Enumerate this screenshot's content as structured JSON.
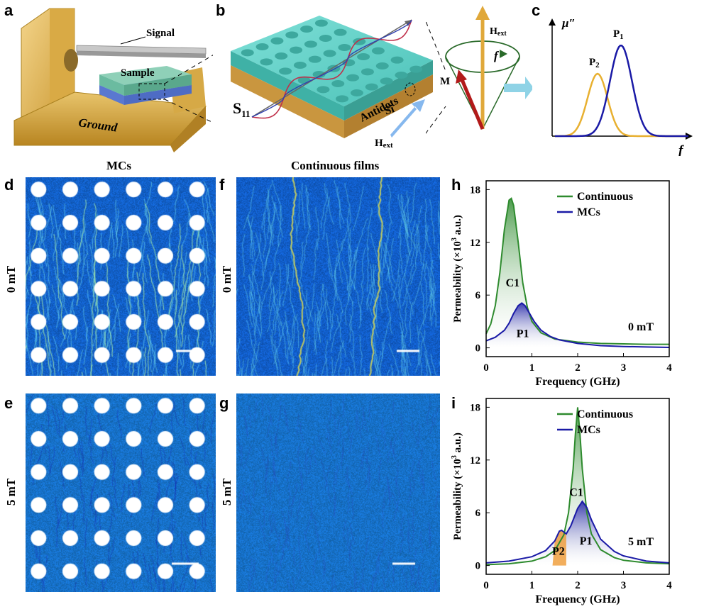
{
  "panels": {
    "a": {
      "label": "a",
      "signal": "Signal",
      "sample": "Sample",
      "ground": "Ground"
    },
    "b": {
      "label": "b",
      "s11": "S",
      "s11_sub": "11",
      "antidots": "Antidots",
      "si": "Si",
      "hext": "H",
      "hext_sub": "ext",
      "hext2": "H",
      "hext2_sub": "ext",
      "m": "M",
      "f": "f"
    },
    "c": {
      "label": "c",
      "ylabel": "μ″",
      "xlabel": "f",
      "p1": "P",
      "p1_sub": "1",
      "p2": "P",
      "p2_sub": "2",
      "colors": {
        "p1": "#1a1aa6",
        "p2": "#e8b030"
      }
    },
    "d": {
      "label": "d"
    },
    "e": {
      "label": "e"
    },
    "f": {
      "label": "f"
    },
    "g": {
      "label": "g"
    },
    "h": {
      "label": "h"
    },
    "i": {
      "label": "i"
    }
  },
  "sections": {
    "mcs": "MCs",
    "continuous": "Continuous films"
  },
  "rows": {
    "zero": "0 mT",
    "five": "5 mT"
  },
  "chart_data": [
    {
      "panel": "h",
      "type": "line",
      "xlabel": "Frequency (GHz)",
      "ylabel": "Permeability (×10",
      "ylabel_sup": "3",
      "ylabel_tail": " a.u.)",
      "xlim": [
        0,
        4
      ],
      "ylim": [
        -1,
        19
      ],
      "xticks": [
        0,
        1,
        2,
        3,
        4
      ],
      "yticks": [
        0,
        6,
        12,
        18
      ],
      "legend": [
        "Continuous",
        "MCs"
      ],
      "annotation": "0 mT",
      "peak_labels": [
        {
          "text": "C1",
          "x": 0.58,
          "y": 7
        },
        {
          "text": "P1",
          "x": 0.8,
          "y": 1.2
        }
      ],
      "series": [
        {
          "name": "Continuous",
          "color": "#2e8b2e",
          "x": [
            0,
            0.1,
            0.2,
            0.3,
            0.4,
            0.5,
            0.55,
            0.6,
            0.7,
            0.8,
            0.9,
            1.0,
            1.2,
            1.5,
            2.0,
            2.5,
            3.0,
            3.5,
            4.0
          ],
          "y": [
            1.6,
            2.7,
            4.8,
            8.5,
            13.5,
            16.8,
            17.0,
            16.2,
            12.0,
            7.4,
            4.6,
            3.0,
            1.7,
            1.0,
            0.65,
            0.5,
            0.45,
            0.4,
            0.4
          ]
        },
        {
          "name": "MCs",
          "color": "#1a1aa6",
          "x": [
            0,
            0.2,
            0.4,
            0.5,
            0.6,
            0.7,
            0.78,
            0.85,
            0.95,
            1.05,
            1.2,
            1.4,
            1.6,
            2.0,
            2.5,
            3.0,
            3.5,
            4.0
          ],
          "y": [
            0.8,
            1.2,
            2.0,
            2.8,
            3.9,
            4.8,
            5.1,
            4.8,
            3.9,
            3.0,
            2.0,
            1.3,
            0.9,
            0.5,
            0.25,
            0.15,
            0.1,
            0.05
          ]
        }
      ]
    },
    {
      "panel": "i",
      "type": "line",
      "xlabel": "Frequency (GHz)",
      "ylabel": "Permeability (×10",
      "ylabel_sup": "3",
      "ylabel_tail": " a.u.)",
      "xlim": [
        0,
        4
      ],
      "ylim": [
        -1,
        19
      ],
      "xticks": [
        0,
        1,
        2,
        3,
        4
      ],
      "yticks": [
        0,
        6,
        12,
        18
      ],
      "legend": [
        "Continuous",
        "MCs"
      ],
      "annotation": "5 mT",
      "peak_labels": [
        {
          "text": "C1",
          "x": 1.97,
          "y": 7.9
        },
        {
          "text": "P1",
          "x": 2.18,
          "y": 2.4
        },
        {
          "text": "P2",
          "x": 1.58,
          "y": 1.2
        }
      ],
      "series": [
        {
          "name": "Continuous",
          "color": "#2e8b2e",
          "x": [
            0,
            0.5,
            1.0,
            1.3,
            1.5,
            1.7,
            1.8,
            1.9,
            1.95,
            2.0,
            2.05,
            2.1,
            2.2,
            2.3,
            2.5,
            2.8,
            3.0,
            3.5,
            4.0
          ],
          "y": [
            0.1,
            0.2,
            0.5,
            1.0,
            1.7,
            3.5,
            6.0,
            11.0,
            15.0,
            18.0,
            15.0,
            11.0,
            6.0,
            3.6,
            1.8,
            0.9,
            0.6,
            0.3,
            0.2
          ]
        },
        {
          "name": "MCs",
          "color": "#1a1aa6",
          "x": [
            0,
            0.5,
            1.0,
            1.3,
            1.5,
            1.6,
            1.65,
            1.7,
            1.75,
            1.85,
            2.0,
            2.1,
            2.2,
            2.3,
            2.5,
            2.8,
            3.0,
            3.5,
            4.0
          ],
          "y": [
            0.3,
            0.5,
            1.0,
            1.7,
            2.8,
            3.9,
            4.0,
            3.8,
            3.6,
            4.5,
            6.5,
            7.3,
            6.6,
            5.2,
            3.0,
            1.6,
            1.1,
            0.5,
            0.3
          ]
        }
      ]
    }
  ]
}
